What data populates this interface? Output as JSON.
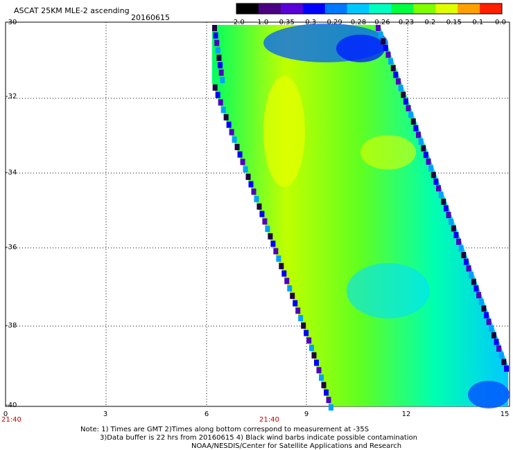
{
  "header": {
    "title": "ASCAT 25KM MLE-2 ascending",
    "date": "20160615"
  },
  "colorbar": {
    "labels": [
      "-2.0",
      "-1.0",
      "-0.35",
      "-0.3",
      "-0.29",
      "-0.28",
      "-0.26",
      "-0.23",
      "-0.2",
      "-0.15",
      "-0.1",
      "0.0"
    ],
    "colors": [
      "#000000",
      "#4b0082",
      "#5a00d8",
      "#0000ff",
      "#0078ff",
      "#00c8ff",
      "#00ffc0",
      "#00ff40",
      "#80ff00",
      "#e0ff00",
      "#ffa000",
      "#ff2000"
    ]
  },
  "map": {
    "lat_labels": [
      "-30",
      "-32",
      "-34",
      "-36",
      "-38",
      "-40"
    ],
    "lon_labels": [
      "0",
      "3",
      "6",
      "9",
      "12",
      "15"
    ],
    "time_labels": [
      "21:40",
      "21:40"
    ],
    "gridlines": "dotted"
  },
  "notes": {
    "line1": "Note: 1) Times are GMT 2)Times along bottom correspond to measurement at -35S",
    "line2": "3)Data buffer is 22 hrs from 20160615 4) Black wind barbs indicate possible contamination",
    "line3": "NOAA/NESDIS/Center for Satellite Applications and Research"
  }
}
